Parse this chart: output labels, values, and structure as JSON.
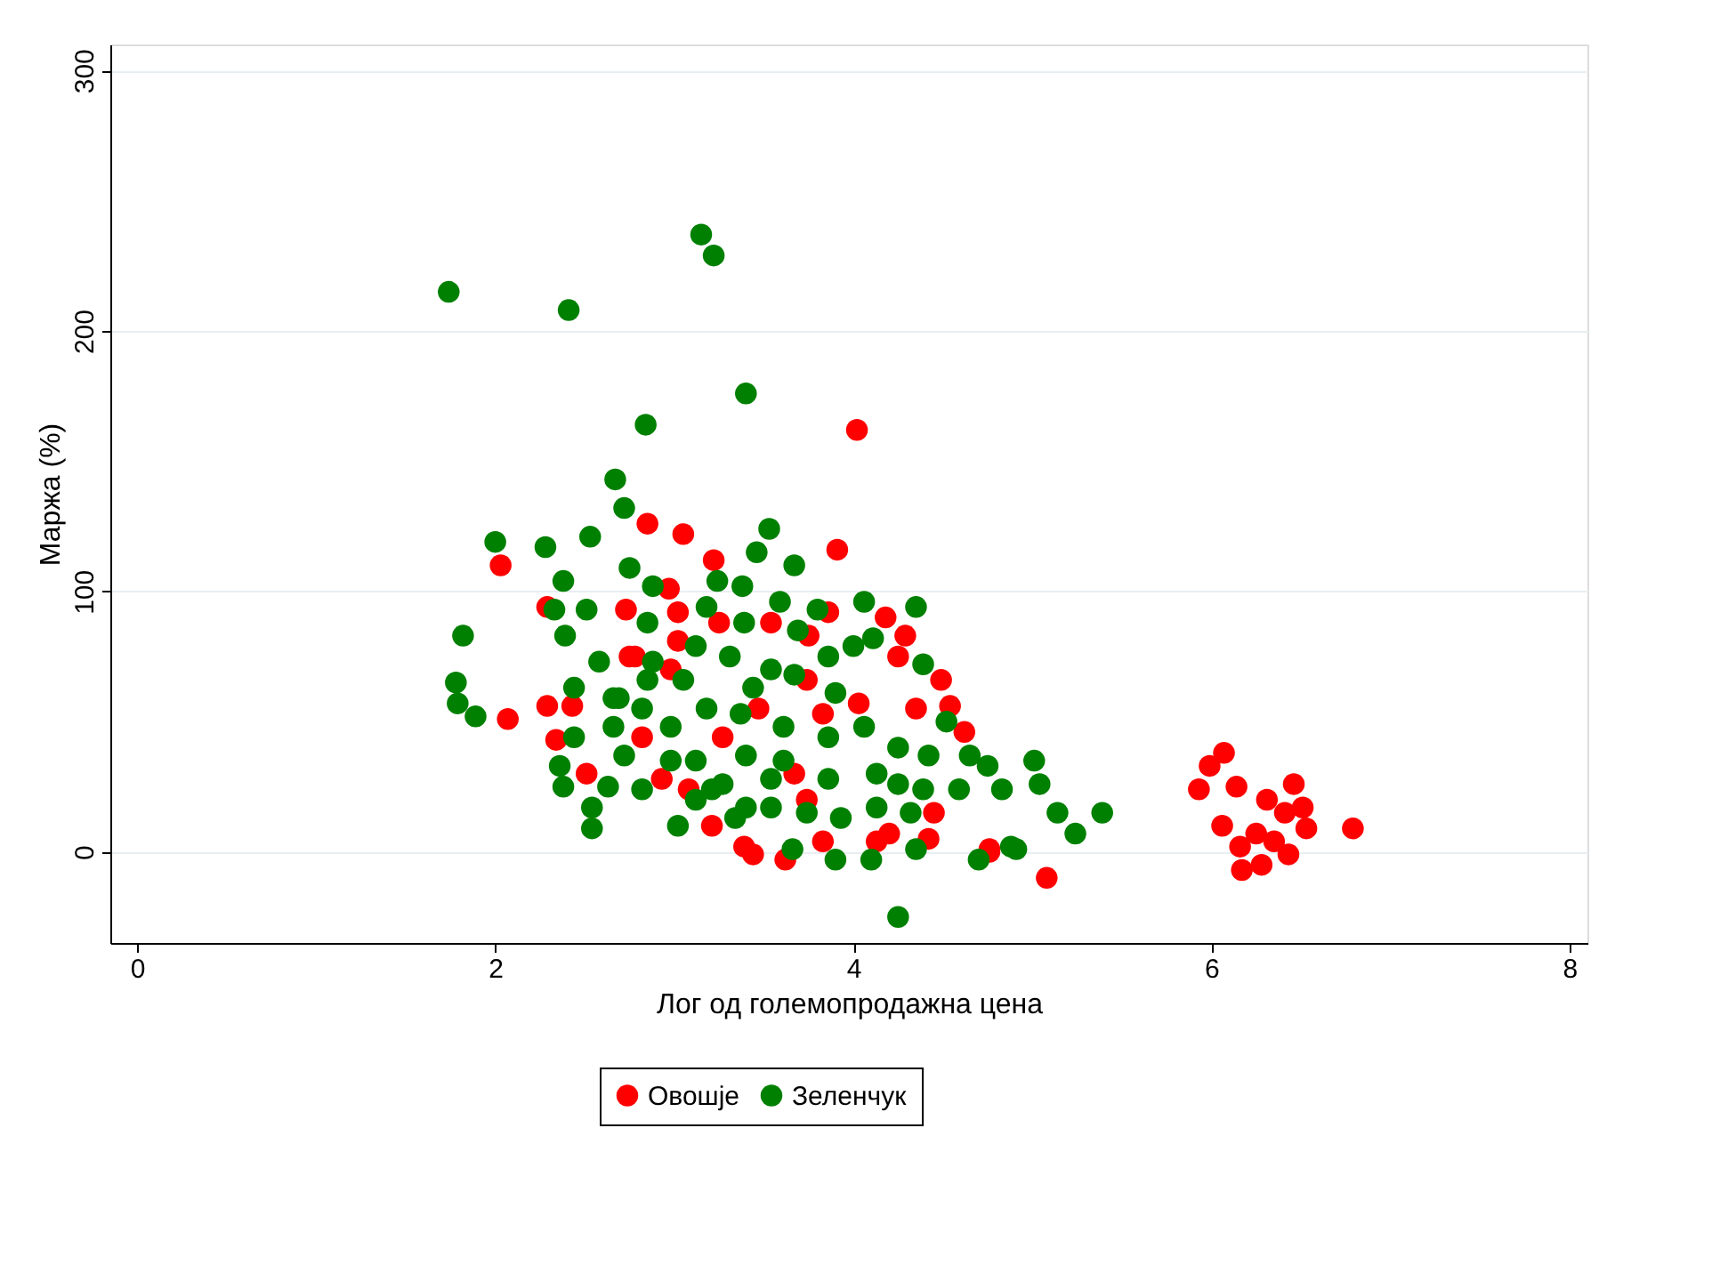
{
  "chart_data": {
    "type": "scatter",
    "xlabel": "Лог од големопродажна цена",
    "ylabel": "Маржа (%)",
    "xlim": [
      -0.15,
      8.1
    ],
    "ylim": [
      -35,
      310
    ],
    "xticks": [
      0,
      2,
      4,
      6,
      8
    ],
    "yticks": [
      0,
      100,
      200,
      300
    ],
    "grid": "y",
    "legend": "bottom",
    "marker": "circle",
    "series": [
      {
        "name": "Овошје",
        "color": "#ff0000",
        "x": [
          6.07,
          5.99,
          5.93,
          6.14,
          6.46,
          6.79,
          6.06,
          6.16,
          6.17,
          6.28,
          6.31,
          6.41,
          6.53,
          6.43,
          6.25,
          6.35,
          6.51,
          5.08,
          4.76,
          4.02,
          2.03,
          2.07,
          2.85,
          3.05,
          3.91,
          3.22,
          2.29,
          2.73,
          2.97,
          3.02,
          3.25,
          3.54,
          3.75,
          3.86,
          4.18,
          4.29,
          4.25,
          4.49,
          4.35,
          4.54,
          4.62,
          2.29,
          2.43,
          2.34,
          2.51,
          2.78,
          3.02,
          2.98,
          3.74,
          3.83,
          3.47,
          3.27,
          3.67,
          3.21,
          3.39,
          3.44,
          3.62,
          3.83,
          4.13,
          4.2,
          4.42,
          4.76,
          2.93,
          3.08,
          2.82,
          4.03,
          3.74,
          4.45,
          2.75
        ],
        "values": [
          38,
          33,
          24,
          25,
          26,
          9,
          10,
          2,
          -7,
          -5,
          20,
          15,
          9,
          -1,
          7,
          4,
          17,
          -10,
          1,
          162,
          110,
          51,
          126,
          122,
          116,
          112,
          94,
          93,
          101,
          92,
          88,
          88,
          83,
          92,
          90,
          83,
          75,
          66,
          55,
          56,
          46,
          56,
          56,
          43,
          30,
          75,
          81,
          70,
          66,
          53,
          55,
          44,
          30,
          10,
          2,
          -1,
          -3,
          4,
          4,
          7,
          5,
          0,
          28,
          24,
          44,
          57,
          20,
          15,
          75
        ]
      },
      {
        "name": "Зеленчук",
        "color": "#008000",
        "x": [
          1.74,
          2.41,
          3.15,
          3.22,
          3.4,
          2.84,
          2.67,
          2.72,
          2.0,
          2.28,
          2.53,
          3.53,
          3.67,
          2.38,
          1.82,
          1.78,
          1.79,
          1.89,
          4.25,
          5.39,
          5.01,
          5.04,
          5.14,
          5.24,
          4.91,
          4.7,
          2.75,
          2.88,
          3.24,
          3.38,
          3.46,
          4.06,
          4.35,
          3.18,
          3.59,
          3.8,
          2.33,
          2.51,
          2.85,
          2.39,
          3.39,
          3.69,
          4.11,
          4.39,
          2.58,
          2.44,
          2.69,
          2.88,
          3.12,
          3.31,
          3.54,
          3.86,
          4.0,
          4.52,
          4.65,
          4.75,
          4.83,
          4.88,
          4.35,
          4.1,
          3.9,
          3.66,
          2.54,
          2.54,
          2.38,
          2.36,
          2.44,
          2.63,
          3.02,
          2.72,
          2.66,
          2.85,
          2.98,
          3.12,
          3.27,
          3.4,
          3.54,
          3.74,
          3.93,
          4.13,
          4.32,
          4.42,
          4.59,
          3.18,
          3.37,
          3.61,
          3.86,
          4.06,
          4.25,
          4.13,
          3.86,
          3.61,
          3.4,
          3.21,
          3.54,
          3.9,
          3.67,
          3.44,
          3.05,
          2.82,
          2.66,
          2.98,
          2.82,
          3.34,
          3.12,
          4.25,
          4.39
        ],
        "values": [
          215,
          208,
          237,
          229,
          176,
          164,
          143,
          132,
          119,
          117,
          121,
          124,
          110,
          104,
          83,
          65,
          57,
          52,
          -25,
          15,
          35,
          26,
          15,
          7,
          1,
          -3,
          109,
          102,
          104,
          102,
          115,
          96,
          94,
          94,
          96,
          93,
          93,
          93,
          88,
          83,
          88,
          85,
          82,
          72,
          73,
          63,
          59,
          73,
          79,
          75,
          70,
          75,
          79,
          50,
          37,
          33,
          24,
          2,
          1,
          -3,
          -3,
          1,
          9,
          17,
          25,
          33,
          44,
          25,
          10,
          37,
          59,
          66,
          48,
          35,
          26,
          17,
          17,
          15,
          13,
          17,
          15,
          37,
          24,
          55,
          53,
          48,
          44,
          48,
          40,
          30,
          28,
          35,
          37,
          24,
          28,
          61,
          68,
          63,
          66,
          55,
          48,
          35,
          24,
          13,
          20,
          26,
          24
        ]
      }
    ]
  }
}
